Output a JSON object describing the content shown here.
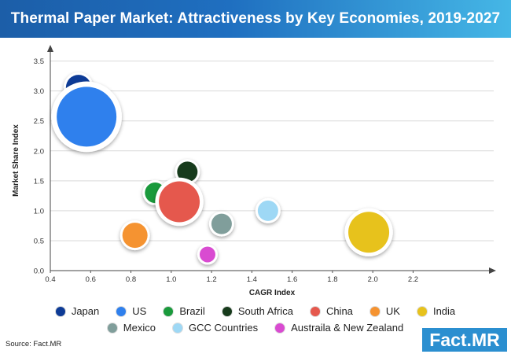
{
  "header": {
    "title": "Thermal Paper Market: Attractiveness by Key Economies, 2019-2027"
  },
  "chart_data": {
    "type": "scatter",
    "title": "Thermal Paper Market: Attractiveness by Key Economies, 2019-2027",
    "xlabel": "CAGR Index",
    "ylabel": "Market Share Index",
    "xlim": [
      0.4,
      2.6
    ],
    "ylim": [
      0.0,
      3.6
    ],
    "x_ticks": [
      "0.4",
      "0.6",
      "0.8",
      "1.0",
      "1.2",
      "1.4",
      "1.6",
      "1.8",
      "2.0",
      "2.2"
    ],
    "y_ticks": [
      "0.0",
      "0.5",
      "1.0",
      "1.5",
      "2.0",
      "2.5",
      "3.0",
      "3.5"
    ],
    "grid": "horizontal",
    "legend_position": "bottom",
    "series": [
      {
        "name": "Japan",
        "x": 0.54,
        "y": 3.06,
        "size": "medium",
        "color": "#0d3b96"
      },
      {
        "name": "US",
        "x": 0.58,
        "y": 2.57,
        "size": "very-large",
        "color": "#2f80ed"
      },
      {
        "name": "Brazil",
        "x": 0.92,
        "y": 1.3,
        "size": "small",
        "color": "#1a9a3c"
      },
      {
        "name": "South Africa",
        "x": 1.08,
        "y": 1.65,
        "size": "small",
        "color": "#173b1c"
      },
      {
        "name": "China",
        "x": 1.04,
        "y": 1.15,
        "size": "large",
        "color": "#e5584d"
      },
      {
        "name": "UK",
        "x": 0.82,
        "y": 0.59,
        "size": "medium",
        "color": "#f59331"
      },
      {
        "name": "India",
        "x": 1.98,
        "y": 0.64,
        "size": "large",
        "color": "#e7c21c"
      },
      {
        "name": "Mexico",
        "x": 1.25,
        "y": 0.78,
        "size": "small",
        "color": "#809e9b"
      },
      {
        "name": "GCC Countries",
        "x": 1.48,
        "y": 1.0,
        "size": "small",
        "color": "#9ed8f5"
      },
      {
        "name": "Austraila & New Zealand",
        "x": 1.18,
        "y": 0.27,
        "size": "tiny",
        "color": "#d94bd1"
      }
    ]
  },
  "legend": {
    "row1": [
      "Japan",
      "US",
      "Brazil",
      "South Africa",
      "China",
      "UK",
      "India"
    ],
    "row2": [
      "Mexico",
      "GCC Countries",
      "Austraila & New Zealand"
    ]
  },
  "footer": {
    "source": "Source: Fact.MR",
    "logo": "Fact.MR"
  }
}
